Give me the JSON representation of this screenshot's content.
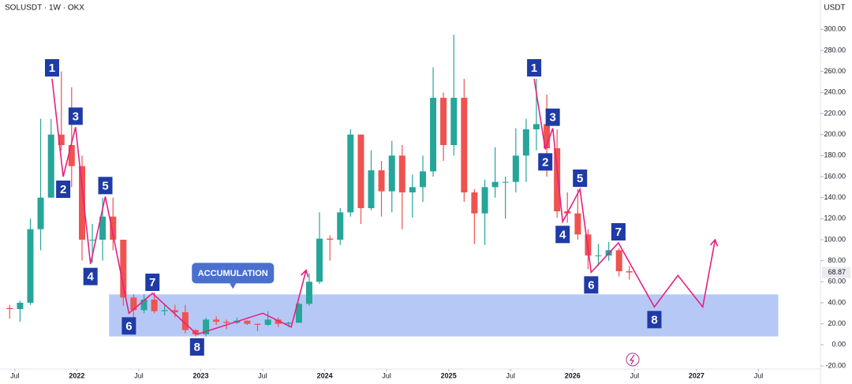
{
  "chart_data": {
    "type": "candlestick",
    "title": "SOLUSDT · 1W · OKX",
    "y_unit": "USDT",
    "up_color": "#26a69a",
    "down_color": "#ef5350",
    "x": [
      2021.458,
      2021.542,
      2021.625,
      2021.708,
      2021.792,
      2021.875,
      2021.958,
      2022.042,
      2022.125,
      2022.208,
      2022.292,
      2022.375,
      2022.458,
      2022.542,
      2022.625,
      2022.708,
      2022.792,
      2022.875,
      2022.958,
      2023.042,
      2023.125,
      2023.208,
      2023.292,
      2023.375,
      2023.458,
      2023.542,
      2023.625,
      2023.708,
      2023.792,
      2023.875,
      2023.958,
      2024.042,
      2024.125,
      2024.208,
      2024.292,
      2024.375,
      2024.458,
      2024.542,
      2024.625,
      2024.708,
      2024.792,
      2024.875,
      2024.958,
      2025.042,
      2025.125,
      2025.208,
      2025.292,
      2025.375,
      2025.458,
      2025.542,
      2025.625,
      2025.708,
      2025.792,
      2025.875,
      2025.958,
      2026.042,
      2026.125,
      2026.208,
      2026.292,
      2026.375,
      2026.458
    ],
    "open": [
      35,
      34,
      40,
      110,
      140,
      200,
      190,
      170,
      100,
      100,
      122,
      100,
      45,
      33,
      43,
      32,
      33,
      31,
      14,
      10,
      24,
      22,
      21,
      23,
      20,
      19,
      24,
      20,
      21,
      39,
      60,
      101,
      100,
      126,
      200,
      130,
      166,
      146,
      180,
      145,
      150,
      165,
      235,
      190,
      235,
      145,
      125,
      150,
      155,
      155,
      180,
      205,
      210,
      187,
      127,
      125,
      105,
      85,
      85,
      90,
      70
    ],
    "high": [
      38,
      42,
      120,
      215,
      215,
      260,
      245,
      180,
      115,
      140,
      140,
      100,
      48,
      48,
      50,
      38,
      38,
      38,
      15,
      26,
      27,
      24,
      26,
      23,
      20,
      32,
      26,
      22,
      40,
      68,
      126,
      104,
      130,
      205,
      200,
      185,
      175,
      194,
      190,
      162,
      180,
      264,
      240,
      295,
      253,
      148,
      157,
      188,
      160,
      206,
      215,
      253,
      238,
      205,
      145,
      148,
      110,
      96,
      98,
      92,
      75
    ],
    "low": [
      25,
      22,
      38,
      90,
      140,
      185,
      150,
      80,
      78,
      80,
      90,
      37,
      26,
      30,
      30,
      28,
      26,
      11,
      8,
      8,
      19,
      15,
      20,
      19,
      13,
      18,
      17,
      17,
      21,
      37,
      58,
      80,
      95,
      122,
      115,
      128,
      122,
      126,
      110,
      121,
      136,
      160,
      175,
      180,
      136,
      96,
      95,
      140,
      120,
      145,
      155,
      185,
      160,
      121,
      116,
      100,
      72,
      75,
      80,
      65,
      62
    ],
    "close": [
      34,
      40,
      110,
      140,
      200,
      190,
      170,
      100,
      100,
      122,
      100,
      45,
      33,
      43,
      32,
      33,
      31,
      14,
      10,
      24,
      22,
      21,
      23,
      20,
      19,
      24,
      20,
      21,
      39,
      60,
      101,
      100,
      126,
      200,
      130,
      166,
      146,
      180,
      145,
      150,
      165,
      235,
      190,
      235,
      145,
      125,
      150,
      155,
      155,
      180,
      205,
      210,
      187,
      127,
      125,
      105,
      85,
      85,
      90,
      70,
      68.87
    ],
    "last_price": {
      "value": 68.87,
      "label": "68.87"
    },
    "xlim": [
      2021.38,
      2028.0
    ],
    "xticks": [
      {
        "value": 2021.5,
        "label": "Jul"
      },
      {
        "value": 2022,
        "label": "2022"
      },
      {
        "value": 2022.5,
        "label": "Jul"
      },
      {
        "value": 2023,
        "label": "2023"
      },
      {
        "value": 2023.5,
        "label": "Jul"
      },
      {
        "value": 2024,
        "label": "2024"
      },
      {
        "value": 2024.5,
        "label": "Jul"
      },
      {
        "value": 2025,
        "label": "2025"
      },
      {
        "value": 2025.5,
        "label": "Jul"
      },
      {
        "value": 2026,
        "label": "2026"
      },
      {
        "value": 2026.5,
        "label": "Jul"
      },
      {
        "value": 2027,
        "label": "2027"
      },
      {
        "value": 2027.5,
        "label": "Jul"
      }
    ],
    "ylim": [
      -23,
      328
    ],
    "yticks": [
      {
        "value": -20,
        "label": "-20.00"
      },
      {
        "value": 0,
        "label": "0.00"
      },
      {
        "value": 20,
        "label": "20.00"
      },
      {
        "value": 40,
        "label": "40.00"
      },
      {
        "value": 60,
        "label": "60.00"
      },
      {
        "value": 80,
        "label": "80.00"
      },
      {
        "value": 100,
        "label": "100.00"
      },
      {
        "value": 120,
        "label": "120.00"
      },
      {
        "value": 140,
        "label": "140.00"
      },
      {
        "value": 160,
        "label": "160.00"
      },
      {
        "value": 180,
        "label": "180.00"
      },
      {
        "value": 200,
        "label": "200.00"
      },
      {
        "value": 220,
        "label": "220.00"
      },
      {
        "value": 240,
        "label": "240.00"
      },
      {
        "value": 260,
        "label": "260.00"
      },
      {
        "value": 280,
        "label": "280.00"
      },
      {
        "value": 300,
        "label": "300.00"
      }
    ],
    "zone": {
      "label": "ACCUMULATION",
      "xlim": [
        2022.26,
        2027.66
      ],
      "ylim": [
        8,
        48
      ],
      "color": "#a9bff4"
    },
    "wave_color": "#e6207f",
    "label_color": "#1e3ba6",
    "waves": [
      {
        "x": [
          2021.8,
          2021.89,
          2021.99,
          2022.11,
          2022.23,
          2022.42,
          2022.61,
          2022.97,
          2023.5,
          2023.73,
          2023.85
        ],
        "y": [
          253,
          160,
          207,
          77,
          141,
          30,
          49,
          10,
          30,
          17,
          71
        ],
        "labels": [
          "1",
          "2",
          "3",
          "4",
          "5",
          "6",
          "7",
          "8"
        ]
      },
      {
        "x": [
          2025.69,
          2025.78,
          2025.84,
          2025.92,
          2026.06,
          2026.15,
          2026.37,
          2026.66,
          2026.85,
          2027.05,
          2027.15
        ],
        "y": [
          253,
          186,
          206,
          117,
          148,
          69,
          97,
          36,
          66,
          36,
          100
        ],
        "labels": [
          "1",
          "2",
          "3",
          "4",
          "5",
          "6",
          "7",
          "8"
        ]
      }
    ]
  }
}
